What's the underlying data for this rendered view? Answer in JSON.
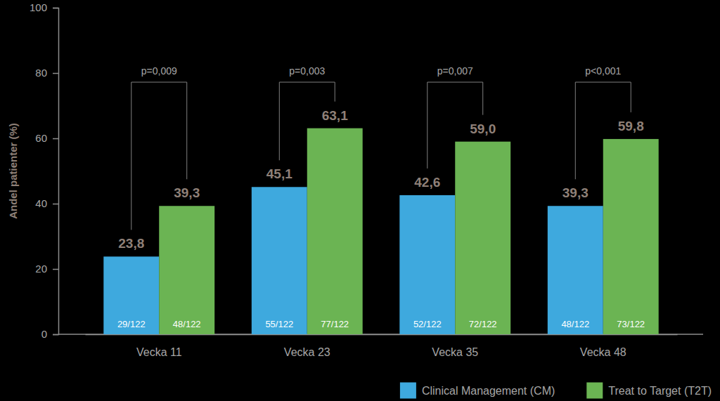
{
  "chart_data": {
    "type": "bar",
    "y_label": "Andel patienter (%)",
    "categories": [
      "Vecka 11",
      "Vecka 23",
      "Vecka 35",
      "Vecka 48"
    ],
    "series": [
      {
        "name": "Clinical Management (CM)",
        "color": "#3ea9de",
        "values": [
          23.8,
          45.1,
          42.6,
          39.3
        ],
        "value_labels": [
          "23,8",
          "45,1",
          "42,6",
          "39,3"
        ],
        "n_labels": [
          "29/122",
          "55/122",
          "52/122",
          "48/122"
        ]
      },
      {
        "name": "Treat to Target (T2T)",
        "color": "#6bb453",
        "values": [
          39.3,
          63.1,
          59.0,
          59.8
        ],
        "value_labels": [
          "39,3",
          "63,1",
          "59,0",
          "59,8"
        ],
        "n_labels": [
          "48/122",
          "77/122",
          "72/122",
          "73/122"
        ]
      }
    ],
    "p_values": [
      "p=0,009",
      "p=0,003",
      "p=0,007",
      "p<0,001"
    ],
    "ylim": [
      0,
      100
    ],
    "yticks": [
      0,
      20,
      40,
      60,
      80,
      100
    ],
    "data_labels": true,
    "legend": "bottom right"
  }
}
